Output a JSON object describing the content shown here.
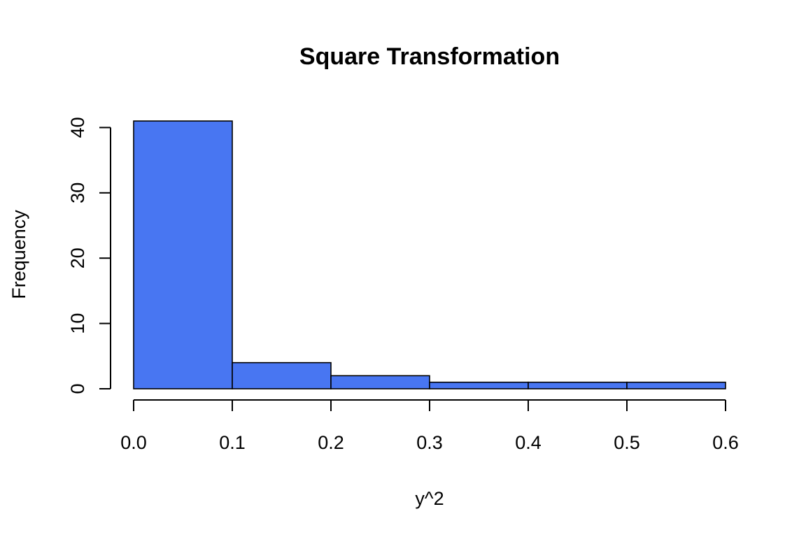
{
  "chart_data": {
    "type": "bar",
    "subtype": "histogram",
    "title": "Square Transformation",
    "xlabel": "y^2",
    "ylabel": "Frequency",
    "bins": [
      {
        "x0": 0.0,
        "x1": 0.1,
        "count": 41
      },
      {
        "x0": 0.1,
        "x1": 0.2,
        "count": 4
      },
      {
        "x0": 0.2,
        "x1": 0.3,
        "count": 2
      },
      {
        "x0": 0.3,
        "x1": 0.4,
        "count": 1
      },
      {
        "x0": 0.4,
        "x1": 0.5,
        "count": 1
      },
      {
        "x0": 0.5,
        "x1": 0.6,
        "count": 1
      }
    ],
    "xlim": [
      0.0,
      0.6
    ],
    "ylim": [
      0,
      41
    ],
    "x_ticks": [
      0.0,
      0.1,
      0.2,
      0.3,
      0.4,
      0.5,
      0.6
    ],
    "x_tick_labels": [
      "0.0",
      "0.1",
      "0.2",
      "0.3",
      "0.4",
      "0.5",
      "0.6"
    ],
    "y_ticks": [
      0,
      10,
      20,
      30,
      40
    ],
    "y_tick_labels": [
      "0",
      "10",
      "20",
      "30",
      "40"
    ],
    "bar_color": "#4876F2",
    "grid": false,
    "legend": "none"
  }
}
